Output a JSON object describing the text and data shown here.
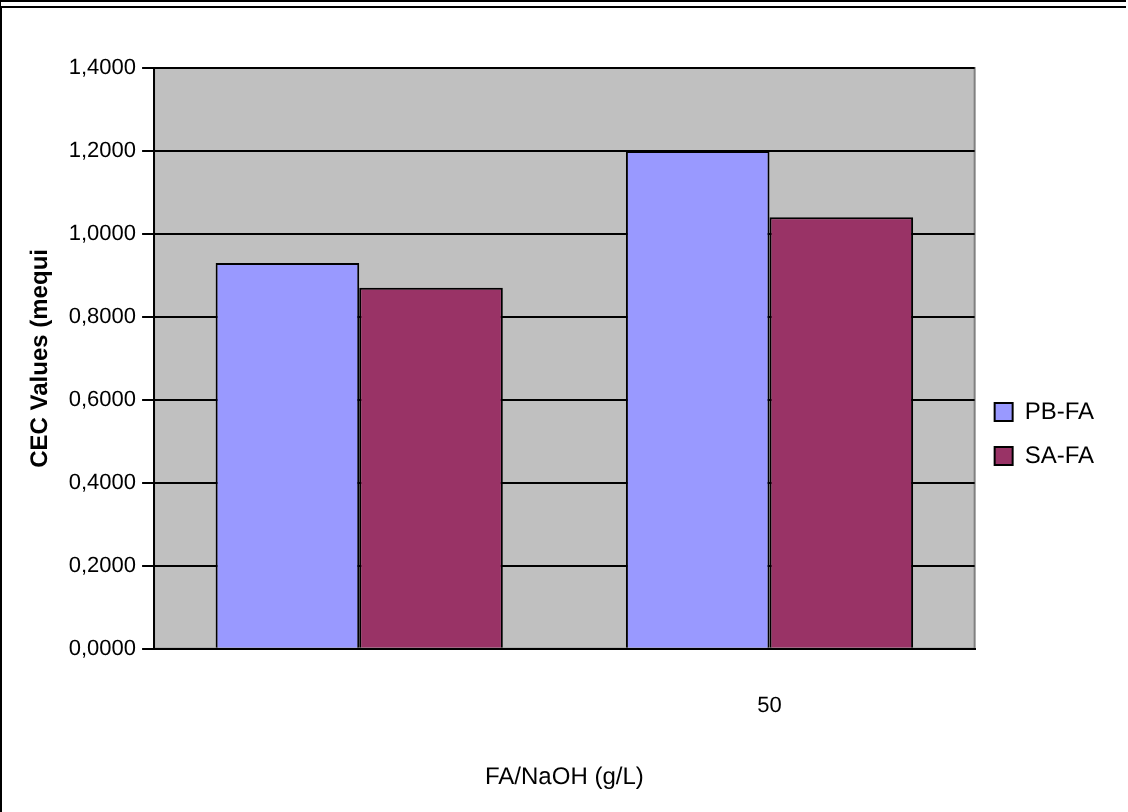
{
  "chart_data": {
    "type": "bar",
    "xlabel": "FA/NaOH (g/L)",
    "ylabel": "CEC Values (mequi",
    "categories": [
      null,
      "50"
    ],
    "series": [
      {
        "name": "PB-FA",
        "color": "#9999ff",
        "values": [
          0.93,
          1.2
        ]
      },
      {
        "name": "SA-FA",
        "color": "#993366",
        "values": [
          0.87,
          1.04
        ]
      }
    ],
    "ylim": [
      0,
      1.4
    ],
    "yticks": [
      {
        "value": 0,
        "label": "0,0000"
      },
      {
        "value": 0.2,
        "label": "0,2000"
      },
      {
        "value": 0.4,
        "label": "0,4000"
      },
      {
        "value": 0.6,
        "label": "0,6000"
      },
      {
        "value": 0.8,
        "label": "0,8000"
      },
      {
        "value": 1,
        "label": "1,0000"
      },
      {
        "value": 1.2,
        "label": "1,2000"
      },
      {
        "value": 1.4,
        "label": "1,4000"
      }
    ],
    "grid": "y",
    "legend": "right"
  }
}
